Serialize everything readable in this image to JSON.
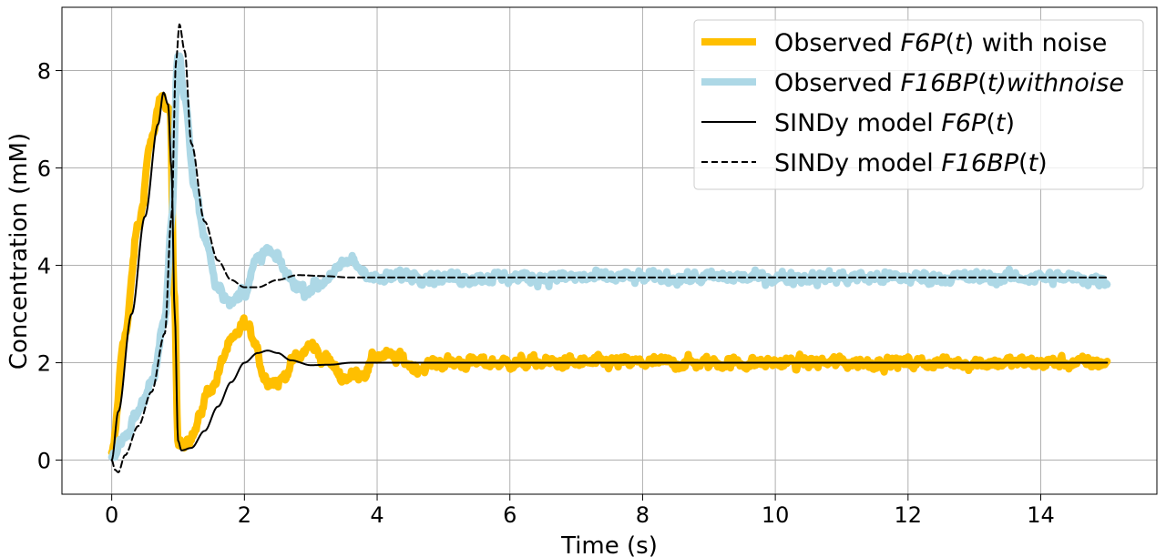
{
  "chart_data": {
    "type": "line",
    "title": "",
    "xlabel": "Time (s)",
    "ylabel": "Concentration (mM)",
    "xlim": [
      -0.75,
      15.75
    ],
    "ylim": [
      -0.7,
      9.3
    ],
    "xticks": [
      0,
      2,
      4,
      6,
      8,
      10,
      12,
      14
    ],
    "yticks": [
      0,
      2,
      4,
      6,
      8
    ],
    "xtick_labels": [
      "0",
      "2",
      "4",
      "6",
      "8",
      "10",
      "12",
      "14"
    ],
    "ytick_labels": [
      "0",
      "2",
      "4",
      "6",
      "8"
    ],
    "grid": true,
    "legend_position": "top-right",
    "series": [
      {
        "name": "Observed F6P(t) with noise",
        "legend_parts": [
          [
            "Observed ",
            ""
          ],
          [
            "F6P",
            "it"
          ],
          [
            "(",
            ""
          ],
          [
            "t",
            "it"
          ],
          [
            ") with noise",
            ""
          ]
        ],
        "color": "#ffbf00",
        "style": "thick",
        "noise": 0.12,
        "x": [
          0,
          0.2,
          0.4,
          0.6,
          0.75,
          0.88,
          0.94,
          1.0,
          1.2,
          1.5,
          1.8,
          2.0,
          2.15,
          2.3,
          2.5,
          2.8,
          3.0,
          3.2,
          3.5,
          3.8,
          4.0,
          4.3,
          4.6,
          5.0,
          6,
          8,
          10,
          12,
          14,
          15
        ],
        "y": [
          0.1,
          2.6,
          4.8,
          6.6,
          7.4,
          7.2,
          3.5,
          0.3,
          0.5,
          1.5,
          2.4,
          2.8,
          2.5,
          1.7,
          1.6,
          2.1,
          2.35,
          2.1,
          1.7,
          1.8,
          2.15,
          2.1,
          1.9,
          2.0,
          2.0,
          2.0,
          2.0,
          2.0,
          2.0,
          2.0
        ]
      },
      {
        "name": "Observed F16BP(t)withnoise",
        "legend_parts": [
          [
            "Observed ",
            ""
          ],
          [
            "F16BP",
            "it"
          ],
          [
            "(",
            ""
          ],
          [
            "t",
            "it"
          ],
          [
            ")withnoise",
            "it"
          ]
        ],
        "color": "#add8e6",
        "style": "thick",
        "noise": 0.12,
        "x": [
          0,
          0.2,
          0.4,
          0.6,
          0.8,
          0.9,
          1.0,
          1.1,
          1.25,
          1.4,
          1.6,
          1.8,
          2.0,
          2.2,
          2.35,
          2.5,
          2.7,
          2.9,
          3.1,
          3.4,
          3.6,
          3.8,
          4.0,
          4.5,
          5,
          6,
          8,
          10,
          12,
          14,
          15
        ],
        "y": [
          0.05,
          0.5,
          1.0,
          1.6,
          2.8,
          5.0,
          8.4,
          7.4,
          5.6,
          4.6,
          3.6,
          3.2,
          3.5,
          4.1,
          4.3,
          4.1,
          3.7,
          3.5,
          3.6,
          3.9,
          4.1,
          3.9,
          3.7,
          3.8,
          3.75,
          3.75,
          3.75,
          3.75,
          3.75,
          3.75,
          3.7
        ]
      },
      {
        "name": "SINDy model F6P(t)",
        "legend_parts": [
          [
            "SINDy model ",
            ""
          ],
          [
            "F6P",
            "it"
          ],
          [
            "(",
            ""
          ],
          [
            "t",
            "it"
          ],
          [
            ")",
            ""
          ]
        ],
        "color": "#000000",
        "style": "solid",
        "x": [
          0,
          0.1,
          0.3,
          0.5,
          0.7,
          0.78,
          0.85,
          0.9,
          0.95,
          1.0,
          1.05,
          1.2,
          1.4,
          1.6,
          1.8,
          2.0,
          2.2,
          2.35,
          2.5,
          2.7,
          3.0,
          3.3,
          3.6,
          4.0,
          5,
          6,
          8,
          10,
          12,
          14,
          15
        ],
        "y": [
          0.0,
          1.0,
          3.0,
          5.0,
          6.9,
          7.55,
          7.3,
          6.0,
          3.0,
          0.4,
          0.2,
          0.25,
          0.6,
          1.1,
          1.6,
          2.0,
          2.2,
          2.25,
          2.2,
          2.05,
          1.95,
          1.96,
          2.0,
          2.0,
          2.0,
          2.0,
          2.0,
          2.0,
          2.0,
          2.0,
          2.0
        ]
      },
      {
        "name": "SINDy model F16BP(t)",
        "legend_parts": [
          [
            "SINDy model ",
            ""
          ],
          [
            "F16BP",
            "it"
          ],
          [
            "(",
            ""
          ],
          [
            "t",
            "it"
          ],
          [
            ")",
            ""
          ]
        ],
        "color": "#000000",
        "style": "dashed",
        "x": [
          0,
          0.05,
          0.1,
          0.2,
          0.4,
          0.6,
          0.8,
          0.9,
          0.97,
          1.02,
          1.1,
          1.2,
          1.4,
          1.6,
          1.8,
          2.0,
          2.2,
          2.5,
          2.8,
          3.2,
          3.6,
          4.0,
          5,
          6,
          8,
          10,
          12,
          14,
          15
        ],
        "y": [
          0.0,
          -0.2,
          -0.25,
          0.1,
          0.7,
          1.4,
          2.6,
          5.0,
          8.2,
          8.95,
          8.4,
          6.5,
          4.9,
          4.1,
          3.7,
          3.55,
          3.55,
          3.7,
          3.8,
          3.78,
          3.75,
          3.75,
          3.75,
          3.75,
          3.75,
          3.75,
          3.75,
          3.75,
          3.75
        ]
      }
    ]
  }
}
